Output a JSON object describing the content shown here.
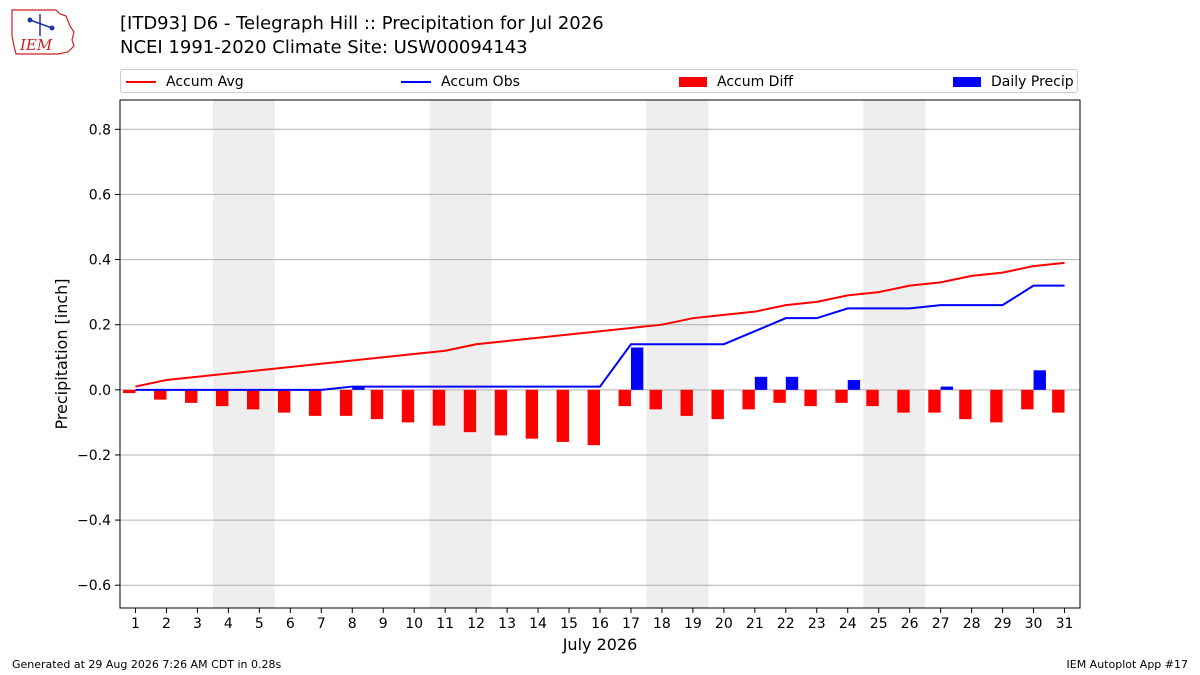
{
  "header": {
    "logo_text": "IEM",
    "title_line1": "[ITD93] D6 - Telegraph Hill  :: Precipitation for Jul 2026",
    "title_line2": "NCEI 1991-2020 Climate Site: USW00094143"
  },
  "legend": {
    "items": [
      {
        "label": "Accum Avg",
        "color": "#ff0000",
        "kind": "line"
      },
      {
        "label": "Accum Obs",
        "color": "#0000ff",
        "kind": "line"
      },
      {
        "label": "Accum Diff",
        "color": "#ff0000",
        "kind": "box"
      },
      {
        "label": "Daily Precip",
        "color": "#0000ff",
        "kind": "box"
      }
    ]
  },
  "chart_data": {
    "type": "bar",
    "xlabel": "July 2026",
    "ylabel": "Precipitation [inch]",
    "x": [
      1,
      2,
      3,
      4,
      5,
      6,
      7,
      8,
      9,
      10,
      11,
      12,
      13,
      14,
      15,
      16,
      17,
      18,
      19,
      20,
      21,
      22,
      23,
      24,
      25,
      26,
      27,
      28,
      29,
      30,
      31
    ],
    "xlim": [
      0.5,
      31.5
    ],
    "ylim": [
      -0.67,
      0.89
    ],
    "yticks": [
      -0.6,
      -0.4,
      -0.2,
      0.0,
      0.2,
      0.4,
      0.6,
      0.8
    ],
    "ytick_labels": [
      "−0.6",
      "−0.4",
      "−0.2",
      "0.0",
      "0.2",
      "0.4",
      "0.6",
      "0.8"
    ],
    "grid": "horizontal",
    "weekend_shading": [
      [
        3.5,
        5.5
      ],
      [
        10.5,
        12.5
      ],
      [
        17.5,
        19.5
      ],
      [
        24.5,
        26.5
      ]
    ],
    "shade_color": "#eeeeee",
    "series": [
      {
        "name": "Accum Avg",
        "kind": "line",
        "color": "#ff0000",
        "values": [
          0.01,
          0.03,
          0.04,
          0.05,
          0.06,
          0.07,
          0.08,
          0.09,
          0.1,
          0.11,
          0.12,
          0.14,
          0.15,
          0.16,
          0.17,
          0.18,
          0.19,
          0.2,
          0.22,
          0.23,
          0.24,
          0.26,
          0.27,
          0.29,
          0.3,
          0.32,
          0.33,
          0.35,
          0.36,
          0.38,
          0.39
        ]
      },
      {
        "name": "Accum Obs",
        "kind": "line",
        "color": "#0000ff",
        "values": [
          0,
          0,
          0,
          0,
          0,
          0,
          0,
          0.01,
          0.01,
          0.01,
          0.01,
          0.01,
          0.01,
          0.01,
          0.01,
          0.01,
          0.14,
          0.14,
          0.14,
          0.14,
          0.18,
          0.22,
          0.22,
          0.25,
          0.25,
          0.25,
          0.26,
          0.26,
          0.26,
          0.32,
          0.32
        ]
      },
      {
        "name": "Accum Diff",
        "kind": "bar",
        "color": "#ff0000",
        "offset": -0.2,
        "values": [
          -0.01,
          -0.03,
          -0.04,
          -0.05,
          -0.06,
          -0.07,
          -0.08,
          -0.08,
          -0.09,
          -0.1,
          -0.11,
          -0.13,
          -0.14,
          -0.15,
          -0.16,
          -0.17,
          -0.05,
          -0.06,
          -0.08,
          -0.09,
          -0.06,
          -0.04,
          -0.05,
          -0.04,
          -0.05,
          -0.07,
          -0.07,
          -0.09,
          -0.1,
          -0.06,
          -0.07
        ]
      },
      {
        "name": "Daily Precip",
        "kind": "bar",
        "color": "#0000ff",
        "offset": 0.2,
        "values": [
          0,
          0,
          0,
          0,
          0,
          0,
          0,
          0.01,
          0,
          0,
          0,
          0,
          0,
          0,
          0,
          0,
          0.13,
          0,
          0,
          0,
          0.04,
          0.04,
          0,
          0.03,
          0,
          0,
          0.01,
          0,
          0,
          0.06,
          0
        ]
      }
    ]
  },
  "footer": {
    "left": "Generated at 29 Aug 2026 7:26 AM CDT in 0.28s",
    "right": "IEM Autoplot App #17"
  }
}
